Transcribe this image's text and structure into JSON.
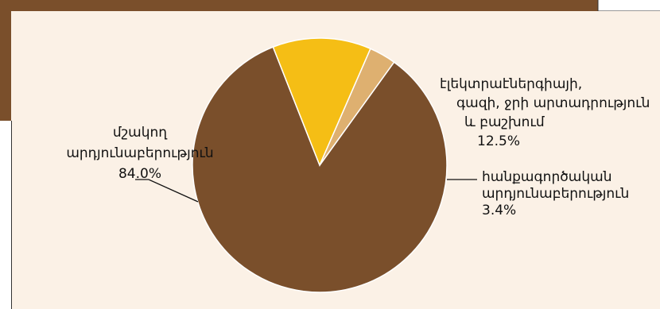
{
  "chart_data": {
    "type": "pie",
    "title": "",
    "slices": [
      {
        "name_lines": [
          "մշակող",
          "արդյունաբերություն"
        ],
        "value": 84.0,
        "value_label": "84.0%",
        "color": "#7a4f2b"
      },
      {
        "name_lines": [
          "էլեկտրաէներգիայի,",
          "գազի, ջրի արտադրություն",
          "և բաշխում"
        ],
        "value": 12.5,
        "value_label": "12.5%",
        "color": "#f5be15"
      },
      {
        "name_lines": [
          "հանքագործական",
          "արդյունաբերություն"
        ],
        "value": 3.4,
        "value_label": "3.4%",
        "color": "#deb070"
      }
    ]
  },
  "colors": {
    "panel_background": "#fbf1e6",
    "frame_dark": "#7a4f2b",
    "border": "#333333",
    "slice_separator": "#ffffff"
  }
}
